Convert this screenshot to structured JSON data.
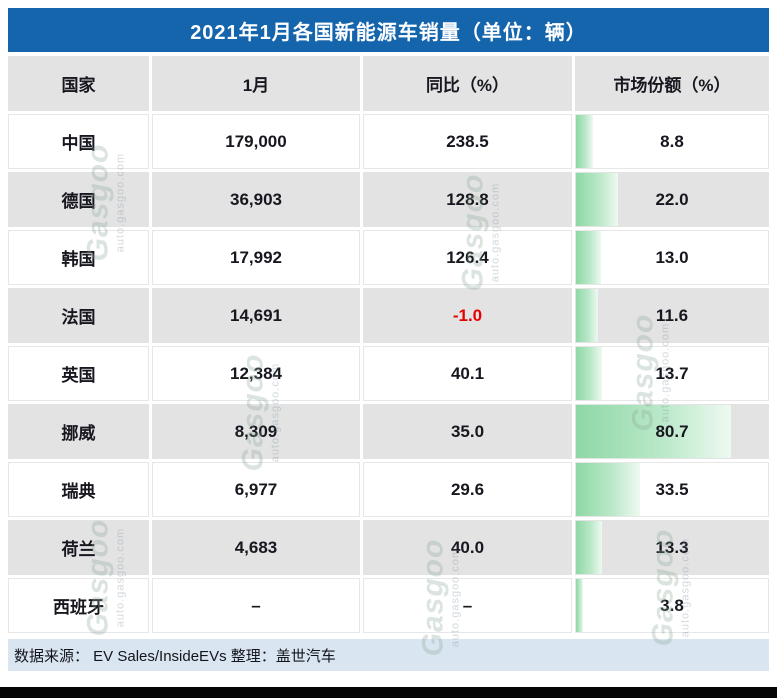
{
  "title": "2021年1月各国新能源车销量（单位：辆）",
  "footer": "数据来源：  EV Sales/InsideEVs 整理：盖世汽车",
  "watermark": {
    "brand": "Gasgoo",
    "domain": "auto.gasgoo.com"
  },
  "colors": {
    "title_bg": "#1565ad",
    "header_bg": "#e3e3e3",
    "row_alt_bg": "#e3e3e3",
    "bar_green": "#8ed8a5",
    "negative_text": "#e60000",
    "footer_bg": "#d9e6f2"
  },
  "chart_data": {
    "type": "table",
    "title": "2021年1月各国新能源车销量（单位：辆）",
    "columns": [
      "国家",
      "1月",
      "同比（%）",
      "市场份额（%）"
    ],
    "rows": [
      {
        "country": "中国",
        "jan_sales": "179,000",
        "yoy_pct": "238.5",
        "market_share_pct": 8.8,
        "market_share_display": "8.8"
      },
      {
        "country": "德国",
        "jan_sales": "36,903",
        "yoy_pct": "128.8",
        "market_share_pct": 22.0,
        "market_share_display": "22.0"
      },
      {
        "country": "韩国",
        "jan_sales": "17,992",
        "yoy_pct": "126.4",
        "market_share_pct": 13.0,
        "market_share_display": "13.0"
      },
      {
        "country": "法国",
        "jan_sales": "14,691",
        "yoy_pct": "-1.0",
        "market_share_pct": 11.6,
        "market_share_display": "11.6"
      },
      {
        "country": "英国",
        "jan_sales": "12,384",
        "yoy_pct": "40.1",
        "market_share_pct": 13.7,
        "market_share_display": "13.7"
      },
      {
        "country": "挪威",
        "jan_sales": "8,309",
        "yoy_pct": "35.0",
        "market_share_pct": 80.7,
        "market_share_display": "80.7"
      },
      {
        "country": "瑞典",
        "jan_sales": "6,977",
        "yoy_pct": "29.6",
        "market_share_pct": 33.5,
        "market_share_display": "33.5"
      },
      {
        "country": "荷兰",
        "jan_sales": "4,683",
        "yoy_pct": "40.0",
        "market_share_pct": 13.3,
        "market_share_display": "13.3"
      },
      {
        "country": "西班牙",
        "jan_sales": "–",
        "yoy_pct": "–",
        "market_share_pct": 3.8,
        "market_share_display": "3.8"
      }
    ],
    "bar_column": "市场份额（%）",
    "bar_axis_max": 100,
    "source_note": "数据来源：  EV Sales/InsideEVs 整理：盖世汽车"
  }
}
